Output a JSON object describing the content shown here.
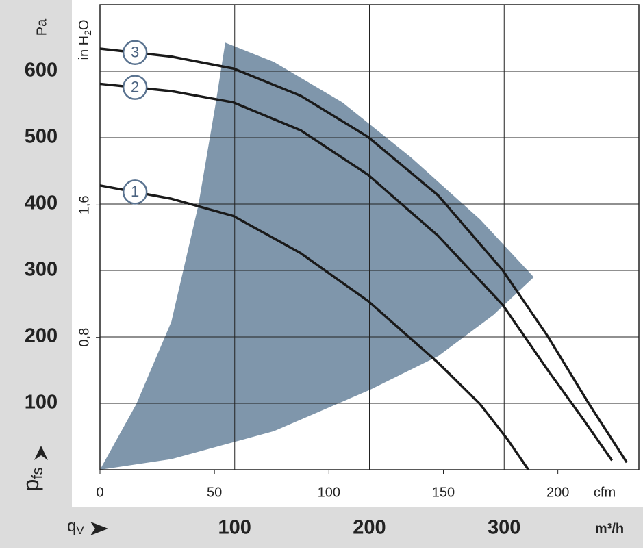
{
  "chart_data": {
    "type": "line",
    "y_unit": "Pa",
    "y2_unit": [
      "in H",
      "2",
      "O"
    ],
    "ylabel": [
      "p",
      "fs"
    ],
    "xlabel": [
      "q",
      "V"
    ],
    "x_unit": "m³/h",
    "x2_unit": "cfm",
    "xlim": [
      0,
      400
    ],
    "xticks": [
      100,
      200,
      300
    ],
    "x2lim": [
      0,
      235.4
    ],
    "x2ticks": [
      0,
      50,
      100,
      150,
      200
    ],
    "ylim": [
      0,
      700
    ],
    "yticks": [
      100,
      200,
      300,
      400,
      500,
      600
    ],
    "y2lim": [
      0,
      2.81
    ],
    "y2ticks": [
      {
        "value": 0.8,
        "label": "0,8"
      },
      {
        "value": 1.6,
        "label": "1,6"
      }
    ],
    "grid": true,
    "region": {
      "color": "#7f96ab",
      "x": [
        0,
        27,
        53,
        73,
        86,
        93,
        129,
        180,
        231,
        282,
        322,
        292,
        251,
        200,
        129,
        53
      ],
      "y": [
        0,
        99,
        223,
        398,
        553,
        643,
        614,
        553,
        470,
        377,
        290,
        233,
        171,
        120,
        58,
        16
      ]
    },
    "series": [
      {
        "name": "1",
        "color": "#1a1a1a",
        "x": [
          0,
          53,
          99,
          149,
          199,
          251,
          282,
          302,
          318
        ],
        "values": [
          428,
          408,
          382,
          326,
          254,
          161,
          99,
          47,
          0
        ]
      },
      {
        "name": "2",
        "color": "#1a1a1a",
        "x": [
          0,
          53,
          99,
          149,
          199,
          251,
          299,
          332,
          358,
          380
        ],
        "values": [
          581,
          570,
          553,
          511,
          444,
          352,
          248,
          151,
          78,
          14
        ]
      },
      {
        "name": "3",
        "color": "#1a1a1a",
        "x": [
          0,
          53,
          99,
          149,
          199,
          251,
          299,
          332,
          363,
          391
        ],
        "values": [
          634,
          622,
          604,
          563,
          501,
          413,
          300,
          202,
          99,
          11
        ]
      }
    ]
  }
}
